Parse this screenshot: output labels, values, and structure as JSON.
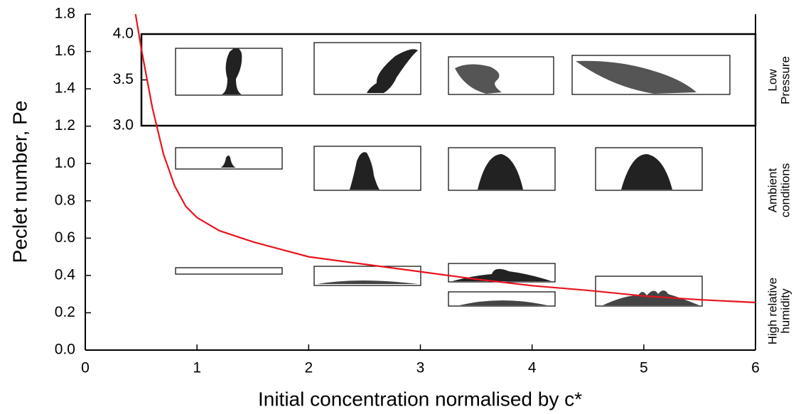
{
  "chart_data": {
    "type": "line",
    "x_label": "Initial concentration normalised by c*",
    "y_label": "Peclet number, Pe",
    "xlim": [
      0,
      6
    ],
    "ylim": [
      0,
      1.8
    ],
    "xticks": [
      0,
      1,
      2,
      3,
      4,
      5,
      6
    ],
    "yticks": [
      {
        "value": 0,
        "label": "0.0"
      },
      {
        "value": 0.2,
        "label": "0.2"
      },
      {
        "value": 0.4,
        "label": "0.4"
      },
      {
        "value": 0.6,
        "label": "0.6"
      },
      {
        "value": 0.8,
        "label": "0.8"
      },
      {
        "value": 1,
        "label": "1.0"
      },
      {
        "value": 1.2,
        "label": "1.2"
      },
      {
        "value": 1.4,
        "label": "1.4"
      },
      {
        "value": 1.6,
        "label": "1.6"
      },
      {
        "value": 1.8,
        "label": "1.8"
      }
    ],
    "inset_ylim": [
      3,
      4
    ],
    "inset_yticks": [
      {
        "value": 3,
        "label": "3.0"
      },
      {
        "value": 3.5,
        "label": "3.5"
      },
      {
        "value": 4,
        "label": "4.0"
      }
    ],
    "series": [
      {
        "color": "#e8141e",
        "x": [
          0.45,
          0.5,
          0.6,
          0.7,
          0.8,
          0.9,
          1.0,
          1.2,
          1.5,
          2,
          2.5,
          3,
          3.5,
          4,
          4.5,
          5,
          5.5,
          6
        ],
        "values": [
          1.8,
          1.62,
          1.3,
          1.05,
          0.88,
          0.77,
          0.71,
          0.64,
          0.58,
          0.5,
          0.46,
          0.42,
          0.38,
          0.345,
          0.32,
          0.29,
          0.27,
          0.255
        ]
      }
    ],
    "annotations": [
      [
        "Low",
        "Pressure"
      ],
      [
        "Ambient",
        "conditions"
      ],
      [
        "High relative",
        "humidity"
      ]
    ]
  }
}
